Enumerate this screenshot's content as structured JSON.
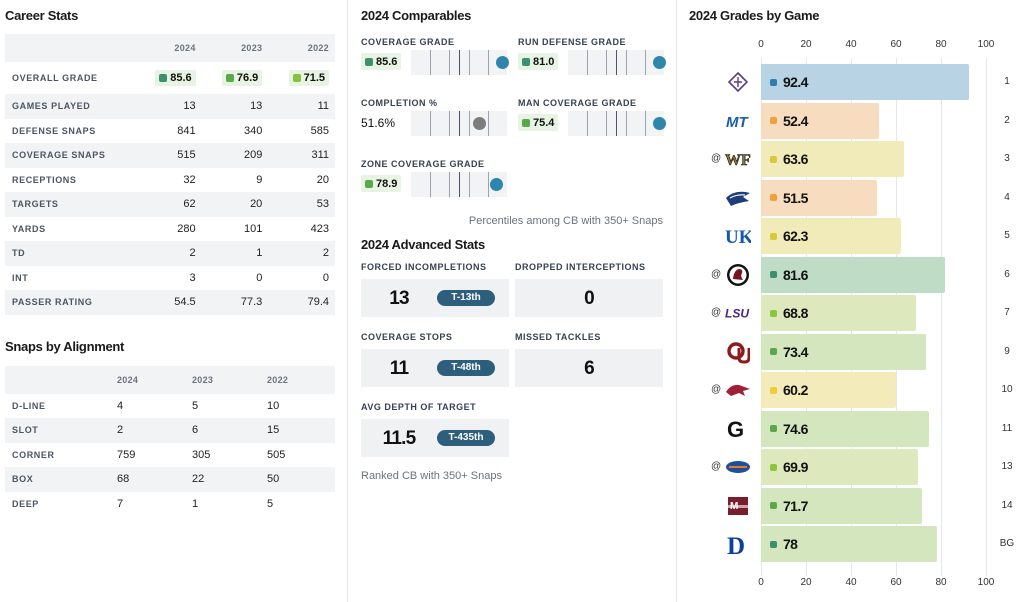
{
  "career": {
    "title": "Career Stats",
    "years": [
      "2024",
      "2023",
      "2022"
    ],
    "overall": {
      "label": "OVERALL GRADE",
      "values": [
        "85.6",
        "76.9",
        "71.5"
      ],
      "colors": [
        "#3d8f6d",
        "#5aa84a",
        "#86c140"
      ]
    },
    "rows": [
      {
        "label": "GAMES PLAYED",
        "values": [
          "13",
          "13",
          "11"
        ]
      },
      {
        "label": "DEFENSE SNAPS",
        "values": [
          "841",
          "340",
          "585"
        ]
      },
      {
        "label": "COVERAGE SNAPS",
        "values": [
          "515",
          "209",
          "311"
        ]
      },
      {
        "label": "RECEPTIONS",
        "values": [
          "32",
          "9",
          "20"
        ]
      },
      {
        "label": "TARGETS",
        "values": [
          "62",
          "20",
          "53"
        ]
      },
      {
        "label": "YARDS",
        "values": [
          "280",
          "101",
          "423"
        ]
      },
      {
        "label": "TD",
        "values": [
          "2",
          "1",
          "2"
        ]
      },
      {
        "label": "INT",
        "values": [
          "3",
          "0",
          "0"
        ]
      },
      {
        "label": "PASSER RATING",
        "values": [
          "54.5",
          "77.3",
          "79.4"
        ]
      }
    ]
  },
  "alignment": {
    "title": "Snaps by Alignment",
    "years": [
      "2024",
      "2023",
      "2022"
    ],
    "rows": [
      {
        "label": "D-LINE",
        "values": [
          "4",
          "5",
          "10"
        ]
      },
      {
        "label": "SLOT",
        "values": [
          "2",
          "6",
          "15"
        ]
      },
      {
        "label": "CORNER",
        "values": [
          "759",
          "305",
          "505"
        ]
      },
      {
        "label": "BOX",
        "values": [
          "68",
          "22",
          "50"
        ]
      },
      {
        "label": "DEEP",
        "values": [
          "7",
          "1",
          "5"
        ]
      }
    ]
  },
  "comparables": {
    "title": "2024 Comparables",
    "items": [
      {
        "label": "COVERAGE GRADE",
        "value": "85.6",
        "color": "#3d8f6d",
        "percentile": 0.96,
        "chip": true
      },
      {
        "label": "RUN DEFENSE GRADE",
        "value": "81.0",
        "color": "#3d8f6d",
        "percentile": 0.98,
        "chip": true
      },
      {
        "label": "COMPLETION %",
        "value": "51.6%",
        "color": "",
        "percentile": 0.72,
        "chip": false
      },
      {
        "label": "MAN COVERAGE GRADE",
        "value": "75.4",
        "color": "#5aa84a",
        "percentile": 0.99,
        "chip": true
      },
      {
        "label": "ZONE COVERAGE GRADE",
        "value": "78.9",
        "color": "#5aa84a",
        "percentile": 0.9,
        "chip": true
      }
    ],
    "note": "Percentiles among CB with 350+ Snaps"
  },
  "advanced": {
    "title": "2024 Advanced Stats",
    "items": [
      {
        "label": "FORCED INCOMPLETIONS",
        "value": "13",
        "rank": "T-13th"
      },
      {
        "label": "DROPPED INTERCEPTIONS",
        "value": "0",
        "rank": ""
      },
      {
        "label": "COVERAGE STOPS",
        "value": "11",
        "rank": "T-48th"
      },
      {
        "label": "MISSED TACKLES",
        "value": "6",
        "rank": ""
      },
      {
        "label": "AVG DEPTH OF TARGET",
        "value": "11.5",
        "rank": "T-435th"
      }
    ],
    "note": "Ranked CB with 350+ Snaps"
  },
  "games": {
    "title": "2024 Grades by Game",
    "ticks": [
      "0",
      "20",
      "40",
      "60",
      "80",
      "100"
    ],
    "rows": [
      {
        "away": "",
        "opponent": "fleur-de-lis-logo-icon",
        "grade": 92.4,
        "grade_label": "92.4",
        "week": "1",
        "bar_color": "#b7d3e4",
        "dot_color": "#2f7fb3"
      },
      {
        "away": "",
        "opponent": "mt-logo-icon",
        "grade": 52.4,
        "grade_label": "52.4",
        "week": "2",
        "bar_color": "#f8dcbf",
        "dot_color": "#f0a13a"
      },
      {
        "away": "@",
        "opponent": "wf-logo-icon",
        "grade": 63.6,
        "grade_label": "63.6",
        "week": "3",
        "bar_color": "#f1eab9",
        "dot_color": "#d6c93a"
      },
      {
        "away": "",
        "opponent": "eagle-logo-icon",
        "grade": 51.5,
        "grade_label": "51.5",
        "week": "4",
        "bar_color": "#f8dcbf",
        "dot_color": "#f0a13a"
      },
      {
        "away": "",
        "opponent": "uk-logo-icon",
        "grade": 62.3,
        "grade_label": "62.3",
        "week": "5",
        "bar_color": "#f1eab9",
        "dot_color": "#d6c93a"
      },
      {
        "away": "@",
        "opponent": "gamecock-logo-icon",
        "grade": 81.6,
        "grade_label": "81.6",
        "week": "6",
        "bar_color": "#bfdcc6",
        "dot_color": "#3d8f6d"
      },
      {
        "away": "@",
        "opponent": "lsu-logo-icon",
        "grade": 68.8,
        "grade_label": "68.8",
        "week": "7",
        "bar_color": "#dde9bd",
        "dot_color": "#8cc43c"
      },
      {
        "away": "",
        "opponent": "ou-logo-icon",
        "grade": 73.4,
        "grade_label": "73.4",
        "week": "9",
        "bar_color": "#d3e6bd",
        "dot_color": "#5aa84a"
      },
      {
        "away": "@",
        "opponent": "razorback-logo-icon",
        "grade": 60.2,
        "grade_label": "60.2",
        "week": "10",
        "bar_color": "#f4ebbb",
        "dot_color": "#f0cc3a"
      },
      {
        "away": "",
        "opponent": "g-logo-icon",
        "grade": 74.6,
        "grade_label": "74.6",
        "week": "11",
        "bar_color": "#d3e6bd",
        "dot_color": "#5aa84a"
      },
      {
        "away": "@",
        "opponent": "gator-logo-icon",
        "grade": 69.9,
        "grade_label": "69.9",
        "week": "13",
        "bar_color": "#dde9bd",
        "dot_color": "#8cc43c"
      },
      {
        "away": "",
        "opponent": "msu-logo-icon",
        "grade": 71.7,
        "grade_label": "71.7",
        "week": "14",
        "bar_color": "#d3e6bd",
        "dot_color": "#5aa84a"
      },
      {
        "away": "",
        "opponent": "d-logo-icon",
        "grade": 78,
        "grade_label": "78",
        "week": "BG",
        "bar_color": "#d3e6bd",
        "dot_color": "#3d8f6d"
      }
    ]
  }
}
